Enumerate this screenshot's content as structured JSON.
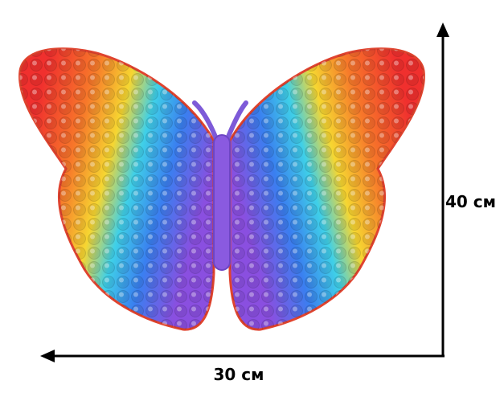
{
  "dimensions": {
    "height_label": "40 см",
    "width_label": "30 см"
  }
}
